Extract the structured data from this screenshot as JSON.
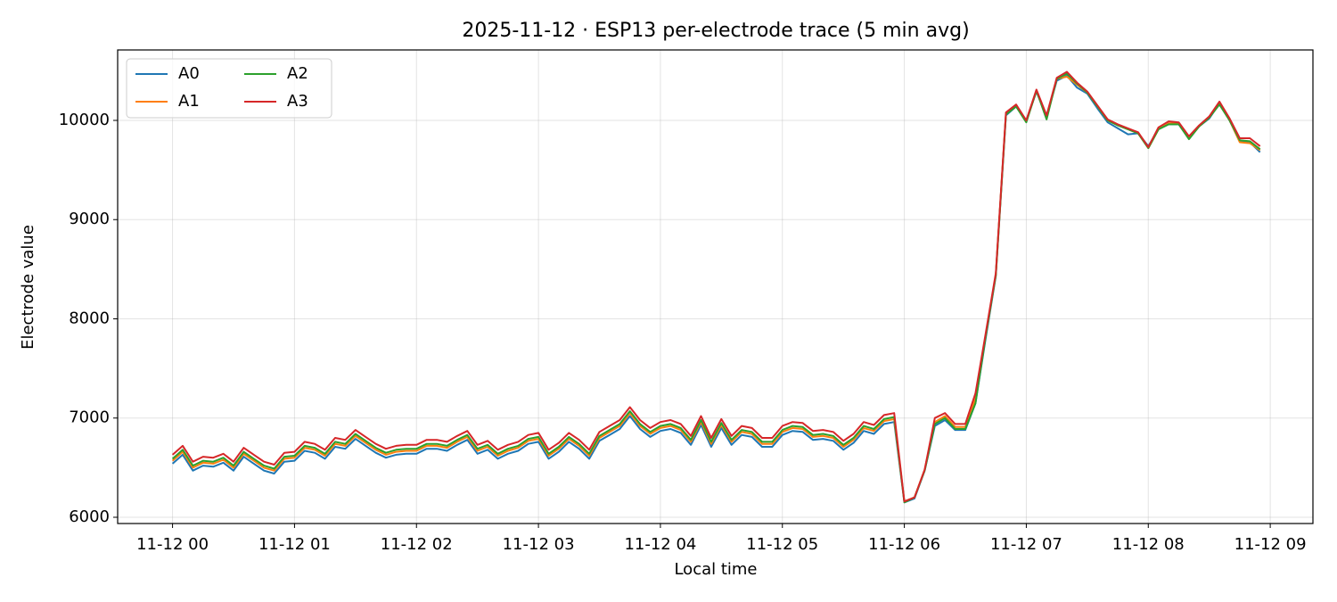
{
  "chart_data": {
    "type": "line",
    "title": "2025-11-12 · ESP13 per-electrode trace (5 min avg)",
    "xlabel": "Local time",
    "ylabel": "Electrode value",
    "x": [
      "11-12 00:00",
      "11-12 00:05",
      "11-12 00:10",
      "11-12 00:15",
      "11-12 00:20",
      "11-12 00:25",
      "11-12 00:30",
      "11-12 00:35",
      "11-12 00:40",
      "11-12 00:45",
      "11-12 00:50",
      "11-12 00:55",
      "11-12 01:00",
      "11-12 01:05",
      "11-12 01:10",
      "11-12 01:15",
      "11-12 01:20",
      "11-12 01:25",
      "11-12 01:30",
      "11-12 01:35",
      "11-12 01:40",
      "11-12 01:45",
      "11-12 01:50",
      "11-12 01:55",
      "11-12 02:00",
      "11-12 02:05",
      "11-12 02:10",
      "11-12 02:15",
      "11-12 02:20",
      "11-12 02:25",
      "11-12 02:30",
      "11-12 02:35",
      "11-12 02:40",
      "11-12 02:45",
      "11-12 02:50",
      "11-12 02:55",
      "11-12 03:00",
      "11-12 03:05",
      "11-12 03:10",
      "11-12 03:15",
      "11-12 03:20",
      "11-12 03:25",
      "11-12 03:30",
      "11-12 03:35",
      "11-12 03:40",
      "11-12 03:45",
      "11-12 03:50",
      "11-12 03:55",
      "11-12 04:00",
      "11-12 04:05",
      "11-12 04:10",
      "11-12 04:15",
      "11-12 04:20",
      "11-12 04:25",
      "11-12 04:30",
      "11-12 04:35",
      "11-12 04:40",
      "11-12 04:45",
      "11-12 04:50",
      "11-12 04:55",
      "11-12 05:00",
      "11-12 05:05",
      "11-12 05:10",
      "11-12 05:15",
      "11-12 05:20",
      "11-12 05:25",
      "11-12 05:30",
      "11-12 05:35",
      "11-12 05:40",
      "11-12 05:45",
      "11-12 05:50",
      "11-12 05:55",
      "11-12 06:00",
      "11-12 06:05",
      "11-12 06:10",
      "11-12 06:15",
      "11-12 06:20",
      "11-12 06:25",
      "11-12 06:30",
      "11-12 06:35",
      "11-12 06:40",
      "11-12 06:45",
      "11-12 06:50",
      "11-12 06:55",
      "11-12 07:00",
      "11-12 07:05",
      "11-12 07:10",
      "11-12 07:15",
      "11-12 07:20",
      "11-12 07:25",
      "11-12 07:30",
      "11-12 07:35",
      "11-12 07:40",
      "11-12 07:45",
      "11-12 07:50",
      "11-12 07:55",
      "11-12 08:00",
      "11-12 08:05",
      "11-12 08:10",
      "11-12 08:15",
      "11-12 08:20",
      "11-12 08:25",
      "11-12 08:30",
      "11-12 08:35",
      "11-12 08:40",
      "11-12 08:45",
      "11-12 08:50",
      "11-12 08:55"
    ],
    "series": [
      {
        "name": "A0",
        "color": "#1f77b4",
        "values": [
          6540,
          6630,
          6470,
          6520,
          6510,
          6550,
          6470,
          6610,
          6540,
          6470,
          6440,
          6560,
          6570,
          6670,
          6650,
          6590,
          6710,
          6690,
          6790,
          6720,
          6650,
          6600,
          6630,
          6640,
          6640,
          6690,
          6690,
          6670,
          6730,
          6780,
          6640,
          6680,
          6590,
          6640,
          6670,
          6740,
          6760,
          6590,
          6660,
          6760,
          6690,
          6590,
          6770,
          6830,
          6890,
          7020,
          6890,
          6810,
          6870,
          6890,
          6850,
          6730,
          6930,
          6710,
          6900,
          6730,
          6830,
          6810,
          6710,
          6710,
          6830,
          6870,
          6860,
          6780,
          6790,
          6770,
          6680,
          6750,
          6870,
          6840,
          6940,
          6960,
          6150,
          6190,
          6470,
          6920,
          6980,
          6880,
          6880,
          7150,
          7800,
          8430,
          10050,
          10140,
          10000,
          10290,
          10040,
          10400,
          10450,
          10330,
          10270,
          10120,
          9980,
          9920,
          9860,
          9870,
          9740,
          9910,
          9960,
          9960,
          9820,
          9940,
          10020,
          10170,
          10000,
          9790,
          9780,
          9680
        ]
      },
      {
        "name": "A1",
        "color": "#ff7f0e",
        "values": [
          6570,
          6660,
          6500,
          6550,
          6540,
          6580,
          6500,
          6640,
          6570,
          6500,
          6470,
          6590,
          6600,
          6700,
          6680,
          6620,
          6740,
          6720,
          6820,
          6750,
          6680,
          6630,
          6660,
          6670,
          6670,
          6720,
          6720,
          6700,
          6760,
          6810,
          6670,
          6710,
          6620,
          6670,
          6700,
          6770,
          6790,
          6620,
          6690,
          6790,
          6720,
          6620,
          6800,
          6860,
          6920,
          7050,
          6920,
          6840,
          6900,
          6920,
          6880,
          6760,
          6960,
          6740,
          6930,
          6760,
          6860,
          6840,
          6740,
          6740,
          6860,
          6900,
          6890,
          6810,
          6820,
          6800,
          6710,
          6780,
          6900,
          6870,
          6970,
          6990,
          6160,
          6200,
          6480,
          6960,
          7020,
          6910,
          6910,
          7200,
          7830,
          8440,
          10070,
          10150,
          9990,
          10300,
          10030,
          10420,
          10440,
          10360,
          10280,
          10140,
          10000,
          9950,
          9910,
          9870,
          9720,
          9910,
          9970,
          9970,
          9820,
          9940,
          10030,
          10170,
          10000,
          9780,
          9770,
          9700
        ]
      },
      {
        "name": "A2",
        "color": "#2ca02c",
        "values": [
          6590,
          6680,
          6520,
          6570,
          6560,
          6600,
          6520,
          6660,
          6590,
          6520,
          6490,
          6610,
          6620,
          6720,
          6700,
          6640,
          6760,
          6740,
          6840,
          6770,
          6700,
          6650,
          6680,
          6690,
          6690,
          6740,
          6740,
          6720,
          6780,
          6830,
          6690,
          6730,
          6640,
          6690,
          6720,
          6790,
          6810,
          6640,
          6710,
          6810,
          6740,
          6640,
          6820,
          6880,
          6940,
          7070,
          6940,
          6860,
          6920,
          6940,
          6900,
          6780,
          6980,
          6760,
          6950,
          6780,
          6880,
          6860,
          6760,
          6760,
          6880,
          6920,
          6910,
          6830,
          6840,
          6820,
          6730,
          6800,
          6920,
          6890,
          6990,
          7010,
          6150,
          6200,
          6470,
          6940,
          7000,
          6890,
          6890,
          7150,
          7820,
          8440,
          10060,
          10140,
          9980,
          10300,
          10010,
          10420,
          10470,
          10370,
          10280,
          10140,
          10000,
          9950,
          9910,
          9870,
          9720,
          9910,
          9960,
          9960,
          9810,
          9940,
          10030,
          10160,
          10000,
          9800,
          9790,
          9710
        ]
      },
      {
        "name": "A3",
        "color": "#d62728",
        "values": [
          6630,
          6720,
          6560,
          6610,
          6600,
          6640,
          6560,
          6700,
          6630,
          6560,
          6530,
          6650,
          6660,
          6760,
          6740,
          6680,
          6800,
          6780,
          6880,
          6810,
          6740,
          6690,
          6720,
          6730,
          6730,
          6780,
          6780,
          6760,
          6820,
          6870,
          6730,
          6770,
          6680,
          6730,
          6760,
          6830,
          6850,
          6680,
          6750,
          6850,
          6780,
          6680,
          6860,
          6920,
          6980,
          7110,
          6980,
          6900,
          6960,
          6980,
          6940,
          6820,
          7020,
          6800,
          6990,
          6820,
          6920,
          6900,
          6800,
          6800,
          6920,
          6960,
          6950,
          6870,
          6880,
          6860,
          6770,
          6840,
          6960,
          6930,
          7030,
          7050,
          6160,
          6200,
          6480,
          7000,
          7050,
          6940,
          6940,
          7250,
          7850,
          8460,
          10080,
          10160,
          10000,
          10310,
          10050,
          10430,
          10490,
          10380,
          10290,
          10150,
          10010,
          9960,
          9920,
          9880,
          9730,
          9930,
          9990,
          9980,
          9840,
          9950,
          10040,
          10190,
          10020,
          9820,
          9820,
          9740
        ]
      }
    ],
    "xlim": [
      "11-11 23:33",
      "11-12 09:21"
    ],
    "xticks": [
      {
        "value": "11-12 00:00",
        "label": "11-12 00"
      },
      {
        "value": "11-12 01:00",
        "label": "11-12 01"
      },
      {
        "value": "11-12 02:00",
        "label": "11-12 02"
      },
      {
        "value": "11-12 03:00",
        "label": "11-12 03"
      },
      {
        "value": "11-12 04:00",
        "label": "11-12 04"
      },
      {
        "value": "11-12 05:00",
        "label": "11-12 05"
      },
      {
        "value": "11-12 06:00",
        "label": "11-12 06"
      },
      {
        "value": "11-12 07:00",
        "label": "11-12 07"
      },
      {
        "value": "11-12 08:00",
        "label": "11-12 08"
      },
      {
        "value": "11-12 09:00",
        "label": "11-12 09"
      }
    ],
    "ylim": [
      5937,
      10710
    ],
    "yticks": [
      6000,
      7000,
      8000,
      9000,
      10000
    ],
    "grid": true,
    "legend": "upper-left"
  }
}
